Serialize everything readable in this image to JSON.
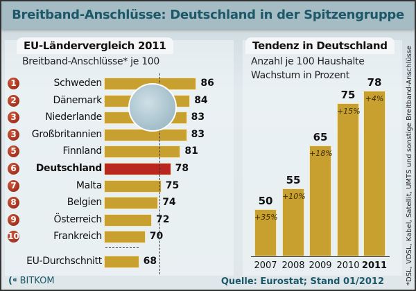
{
  "title": "Breitband-Anschlüsse: Deutschland in der Spitzengruppe",
  "chart_data": [
    {
      "type": "bar",
      "orientation": "horizontal",
      "title": "EU-Ländervergleich 2011",
      "subtitle": "Breitband-Anschlüsse* je 100",
      "ranks": [
        "1",
        "2",
        "3",
        "3",
        "5",
        "6",
        "7",
        "8",
        "9",
        "10"
      ],
      "categories": [
        "Schweden",
        "Dänemark",
        "Niederlande",
        "Großbritannien",
        "Finnland",
        "Deutschland",
        "Malta",
        "Belgien",
        "Österreich",
        "Frankreich"
      ],
      "values": [
        86,
        84,
        83,
        83,
        81,
        78,
        75,
        74,
        72,
        70
      ],
      "highlight": "Deutschland",
      "highlight_color": "#b8281e",
      "bar_color": "#c8a030",
      "average": {
        "label": "EU-Durchschnitt",
        "value": 68
      }
    },
    {
      "type": "bar",
      "title": "Tendenz in Deutschland",
      "subtitle": [
        "Anzahl je 100 Haushalte",
        "Wachstum in Prozent"
      ],
      "categories": [
        "2007",
        "2008",
        "2009",
        "2010",
        "2011"
      ],
      "values": [
        50,
        55,
        65,
        75,
        78
      ],
      "growth_labels": [
        "+35%",
        "+10%",
        "+18%",
        "+15%",
        "+4%"
      ],
      "bar_color": "#c8a030"
    }
  ],
  "footnote": "*DSL, VDSL, Kabel, Satellit, UMTS und sonstige Breitband-Anschlüsse",
  "source": "Quelle: Eurostat; Stand 01/2012",
  "logo": "BITKOM"
}
